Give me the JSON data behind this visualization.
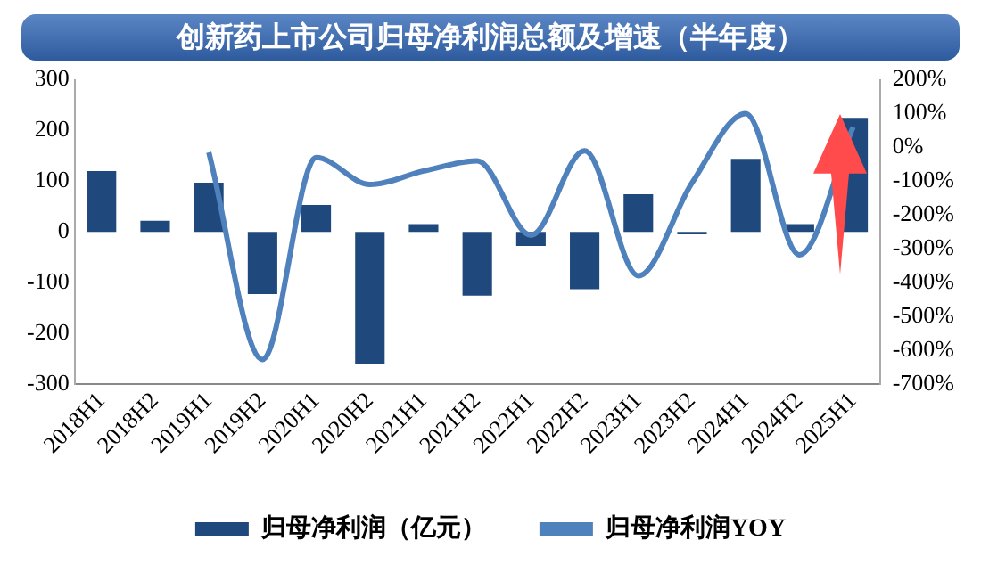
{
  "chart_data": {
    "type": "bar",
    "title": "创新药上市公司归母净利润总额及增速（半年度）",
    "categories": [
      "2018H1",
      "2018H2",
      "2019H1",
      "2019H2",
      "2020H1",
      "2020H2",
      "2021H1",
      "2021H2",
      "2022H1",
      "2022H2",
      "2023H1",
      "2023H2",
      "2024H1",
      "2024H2",
      "2025H1"
    ],
    "series": [
      {
        "name": "归母净利润（亿元）",
        "color": "#1f497d",
        "values": [
          120,
          22,
          97,
          -123,
          53,
          -260,
          15,
          -126,
          -28,
          -113,
          74,
          -5,
          144,
          15,
          225
        ]
      },
      {
        "name": "归母净利润YOY",
        "type": "line",
        "axis": "y2",
        "color": "#4f81bd",
        "values": [
          null,
          null,
          -15,
          -628,
          -30,
          -110,
          -70,
          -40,
          -260,
          -10,
          -380,
          -105,
          100,
          -318,
          60
        ]
      }
    ],
    "ylim": [
      -300,
      300
    ],
    "yticks": [
      -300,
      -200,
      -100,
      0,
      100,
      200,
      300
    ],
    "y2lim": [
      -700,
      200
    ],
    "y2ticks": [
      {
        "value": -700,
        "label": "-700%"
      },
      {
        "value": -600,
        "label": "-600%"
      },
      {
        "value": -500,
        "label": "-500%"
      },
      {
        "value": -400,
        "label": "-400%"
      },
      {
        "value": -300,
        "label": "-300%"
      },
      {
        "value": -200,
        "label": "-200%"
      },
      {
        "value": -100,
        "label": "-100%"
      },
      {
        "value": 0,
        "label": "0%"
      },
      {
        "value": 100,
        "label": "100%"
      },
      {
        "value": 200,
        "label": "200%"
      }
    ],
    "grid": false,
    "legend": "bottom"
  }
}
